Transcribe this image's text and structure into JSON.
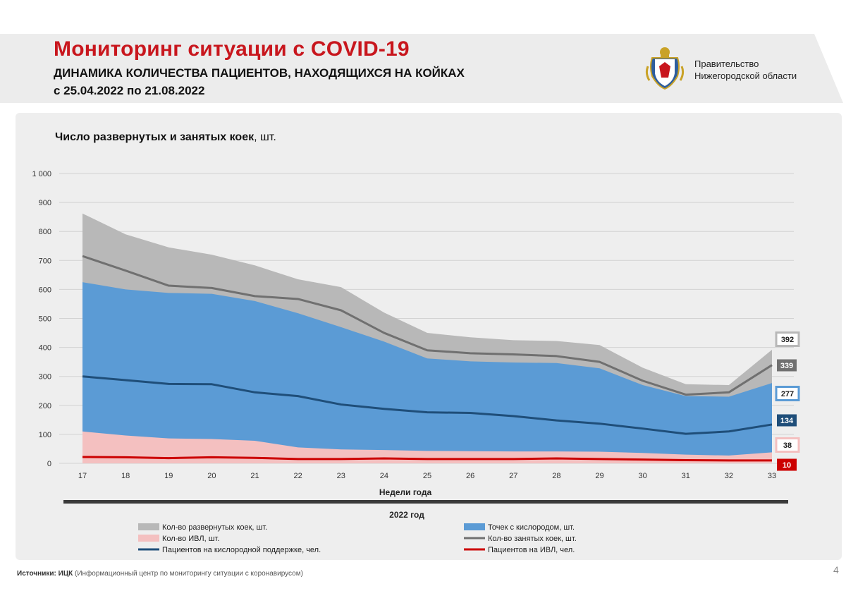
{
  "header": {
    "title": "Мониторинг ситуации с COVID-19",
    "subtitle": "ДИНАМИКА КОЛИЧЕСТВА ПАЦИЕНТОВ, НАХОДЯЩИХСЯ НА КОЙКАХ",
    "period": "с 25.04.2022 по 21.08.2022",
    "org_line1": "Правительство",
    "org_line2": "Нижегородской области",
    "emblem_icon": "coat-of-arms-icon"
  },
  "chart_heading": {
    "bold": "Число развернутых и занятых коек",
    "rest": ", шт."
  },
  "chart_data": {
    "type": "area",
    "x": [
      "17",
      "18",
      "19",
      "20",
      "21",
      "22",
      "23",
      "24",
      "25",
      "26",
      "27",
      "28",
      "29",
      "30",
      "31",
      "32",
      "33"
    ],
    "xlabel": "Недели года",
    "year_label": "2022 год",
    "ylim": [
      0,
      1000
    ],
    "yticks": [
      "0",
      "100",
      "200",
      "300",
      "400",
      "500",
      "600",
      "700",
      "800",
      "900",
      "1 000"
    ],
    "grid": true,
    "legend_position": "bottom",
    "series": [
      {
        "name": "Кол-во развернутых коек, шт.",
        "kind": "area",
        "color": "#b8b8b8",
        "values": [
          862,
          790,
          745,
          720,
          683,
          635,
          608,
          520,
          450,
          435,
          425,
          422,
          408,
          330,
          273,
          270,
          392
        ],
        "end_label": "392"
      },
      {
        "name": "Точек с кислородом, шт.",
        "kind": "area",
        "color": "#5b9bd5",
        "values": [
          625,
          600,
          588,
          585,
          560,
          518,
          470,
          420,
          362,
          352,
          348,
          346,
          328,
          270,
          232,
          230,
          277
        ],
        "end_label": "277"
      },
      {
        "name": "Кол-во ИВЛ, шт.",
        "kind": "area",
        "color": "#f4c0c0",
        "values": [
          110,
          96,
          86,
          84,
          78,
          55,
          48,
          46,
          43,
          42,
          41,
          41,
          40,
          36,
          30,
          27,
          38
        ],
        "end_label": "38"
      },
      {
        "name": "Кол-во занятых коек, шт.",
        "kind": "line",
        "color": "#707070",
        "values": [
          715,
          665,
          613,
          605,
          577,
          567,
          528,
          450,
          390,
          380,
          376,
          370,
          350,
          285,
          237,
          245,
          339
        ],
        "end_label": "339"
      },
      {
        "name": "Пациентов на кислородной поддержке, чел.",
        "kind": "line",
        "color": "#1f4e79",
        "values": [
          300,
          287,
          274,
          273,
          245,
          232,
          203,
          188,
          176,
          174,
          163,
          148,
          137,
          120,
          102,
          110,
          134
        ],
        "end_label": "134"
      },
      {
        "name": "Пациентов на ИВЛ, чел.",
        "kind": "line",
        "color": "#cc0000",
        "values": [
          22,
          21,
          18,
          21,
          19,
          15,
          15,
          17,
          15,
          15,
          15,
          17,
          15,
          13,
          11,
          10,
          10
        ],
        "end_label": "10"
      }
    ]
  },
  "footer": {
    "source_bold": "Источники: ИЦК",
    "source_rest": " (Информационный центр по мониторингу ситуации с  коронавирусом)",
    "page_number": "4"
  }
}
